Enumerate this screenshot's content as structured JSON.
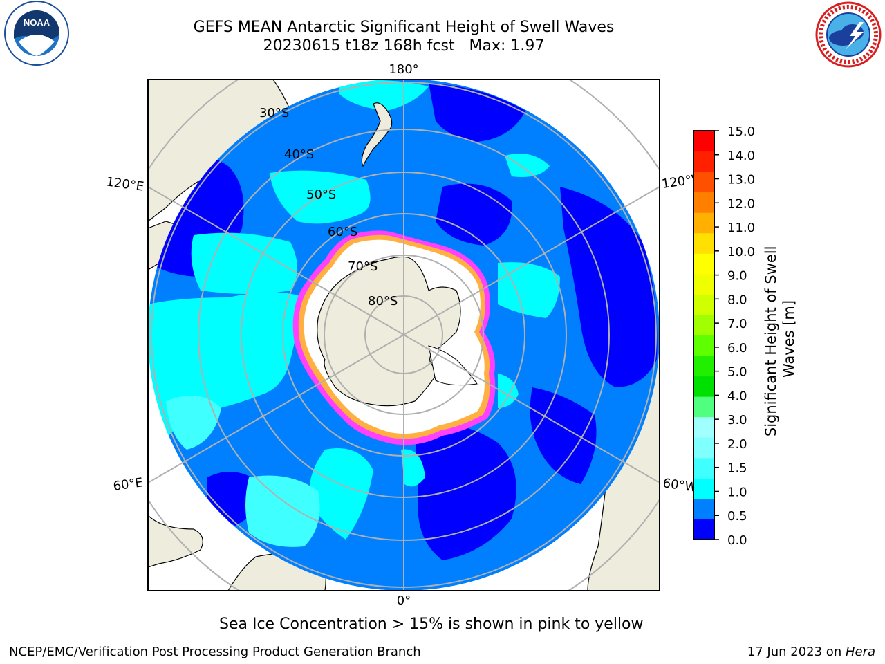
{
  "title": {
    "line1": "GEFS MEAN Antarctic Significant Height of Swell Waves",
    "line2": "20230615 t18z 168h fcst   Max: 1.97"
  },
  "logos": {
    "left": {
      "icon": "noaa-logo",
      "text": "NOAA",
      "ring_text": "NATIONAL OCEANIC AND ATMOSPHERIC ADMINISTRATION · U.S. DEPARTMENT OF COMMERCE"
    },
    "right": {
      "icon": "nws-logo",
      "ring_text": "NATIONAL WEATHER SERVICE"
    }
  },
  "map": {
    "projection": "south-polar-stereographic",
    "longitude_labels": {
      "top": "180°",
      "bottom": "0°",
      "upper_left": "120°E",
      "upper_right": "120°W",
      "lower_left": "60°E",
      "lower_right": "60°W"
    },
    "latitude_labels": [
      "30°S",
      "40°S",
      "50°S",
      "60°S",
      "70°S",
      "80°S"
    ],
    "colors": {
      "land": "#eeecdc",
      "ocean_low": "#0000ff",
      "ocean_mid": "#0080ff",
      "ocean_high": "#00ffff",
      "ocean_higher": "#40ffff",
      "ice": "#ffffff",
      "ice_edge": "#ff40ff",
      "ice_edge2": "#ffb040",
      "grid": "#b0b0b0"
    }
  },
  "colorbar": {
    "label": "Significant Height of Swell Waves [m]",
    "ticks": [
      "15.0",
      "14.0",
      "13.0",
      "12.0",
      "11.0",
      "10.0",
      "9.0",
      "8.0",
      "7.0",
      "6.0",
      "5.0",
      "4.0",
      "3.0",
      "2.0",
      "1.5",
      "1.0",
      "0.5",
      "0.0"
    ],
    "colors_bottom_to_top": [
      "#0000ff",
      "#0080ff",
      "#00ffff",
      "#40ffff",
      "#80ffff",
      "#a0ffff",
      "#50ff80",
      "#00e000",
      "#20f000",
      "#60ff00",
      "#a0ff00",
      "#d0ff00",
      "#f0ff00",
      "#ffff00",
      "#ffe000",
      "#ffb000",
      "#ff8000",
      "#ff5000",
      "#ff2000",
      "#ff0000"
    ]
  },
  "ice_note": "Sea Ice Concentration > 15% is shown in pink to yellow",
  "credit": "NCEP/EMC/Verification Post Processing Product Generation Branch",
  "date": {
    "text": "17 Jun 2023 on ",
    "host": "Hera"
  }
}
